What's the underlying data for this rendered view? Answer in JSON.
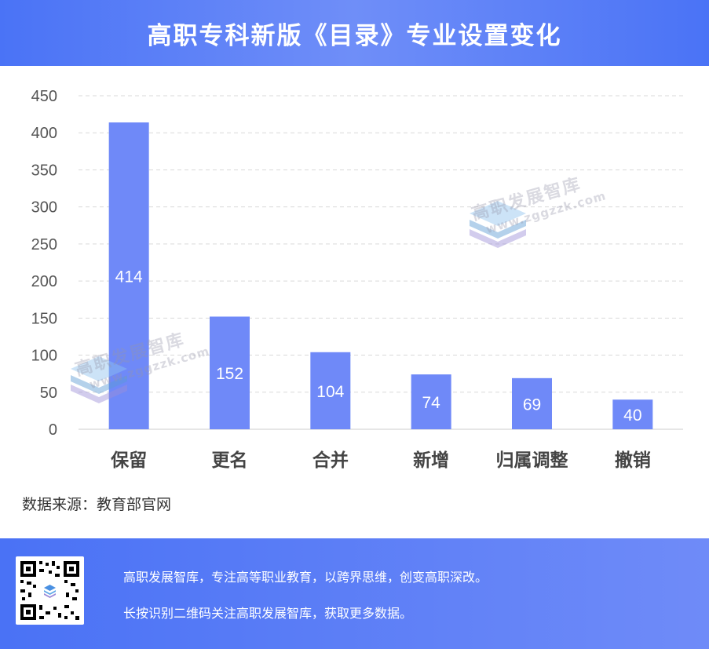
{
  "header": {
    "title": "高职专科新版《目录》专业设置变化"
  },
  "chart_data": {
    "type": "bar",
    "categories": [
      "保留",
      "更名",
      "合并",
      "新增",
      "归属调整",
      "撤销"
    ],
    "values": [
      414,
      152,
      104,
      74,
      69,
      40
    ],
    "ylim": [
      0,
      450
    ],
    "yticks": [
      0,
      50,
      100,
      150,
      200,
      250,
      300,
      350,
      400,
      450
    ],
    "grid": true,
    "title": "",
    "xlabel": "",
    "ylabel": "",
    "bar_color": "#6f89f8"
  },
  "source": {
    "text": "数据来源：教育部官网"
  },
  "watermark": {
    "name": "高职发展智库",
    "url": "www.zggzzk.com"
  },
  "footer": {
    "slogan1": "高职发展智库，专注高等职业教育，以跨界思维，创变高职深改。",
    "slogan2": "长按识别二维码关注高职发展智库，获取更多数据。"
  },
  "colors": {
    "header_bg": "#4a73f6",
    "footer_bg": "#4a72f5",
    "bar": "#6f89f8"
  }
}
